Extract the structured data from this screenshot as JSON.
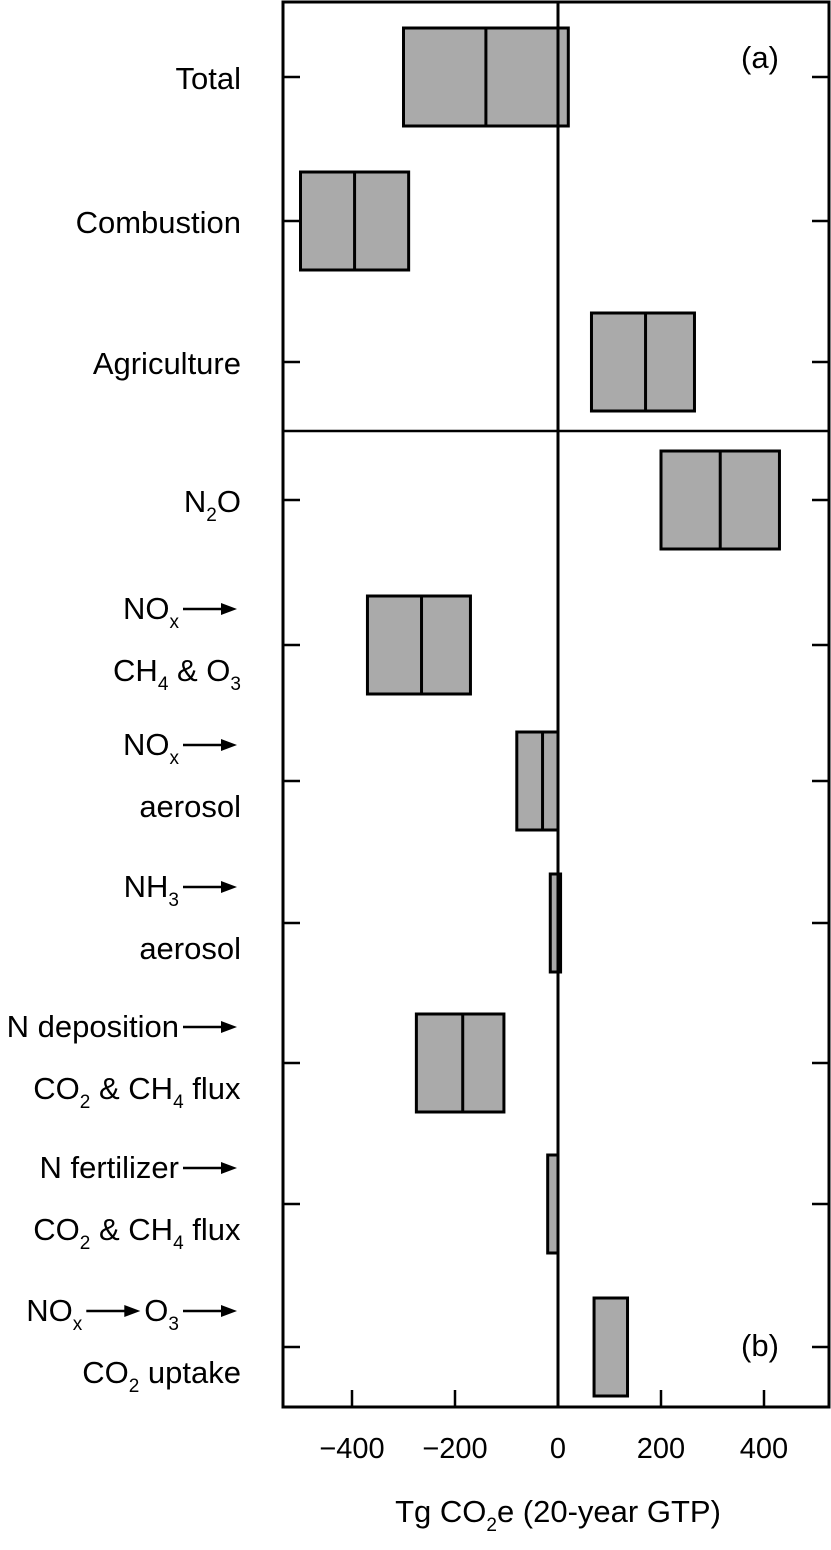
{
  "chart_data": {
    "type": "bar",
    "orientation": "horizontal",
    "bar_style": "range-with-center-line",
    "xlabel": {
      "parts": [
        {
          "t": "Tg CO"
        },
        {
          "t": "2",
          "sub": true
        },
        {
          "t": "e (20-year GTP)"
        }
      ]
    },
    "xlim": [
      -540,
      540
    ],
    "xticks": [
      -400,
      -200,
      0,
      200,
      400
    ],
    "xtick_labels": [
      "−400",
      "−200",
      "0",
      "200",
      "400"
    ],
    "grid": false,
    "panel_labels": [
      "(a)",
      "(b)"
    ],
    "bar_color": "#aaaaaa",
    "categories": [
      {
        "panel": "a",
        "lines": [
          [
            {
              "t": "Total"
            }
          ]
        ],
        "low": -300,
        "mid": -140,
        "high": 20
      },
      {
        "panel": "a",
        "lines": [
          [
            {
              "t": "Combustion"
            }
          ]
        ],
        "low": -500,
        "mid": -395,
        "high": -290
      },
      {
        "panel": "a",
        "lines": [
          [
            {
              "t": "Agriculture"
            }
          ]
        ],
        "low": 65,
        "mid": 170,
        "high": 265
      },
      {
        "panel": "b",
        "lines": [
          [
            {
              "t": "N"
            },
            {
              "t": "2",
              "sub": true
            },
            {
              "t": "O"
            }
          ]
        ],
        "low": 200,
        "mid": 315,
        "high": 430
      },
      {
        "panel": "b",
        "lines": [
          [
            {
              "t": "NO"
            },
            {
              "t": "x",
              "sub": true
            },
            {
              "arrow": true
            }
          ],
          [
            {
              "t": "CH"
            },
            {
              "t": "4",
              "sub": true
            },
            {
              "t": " & O"
            },
            {
              "t": "3",
              "sub": true
            }
          ]
        ],
        "low": -370,
        "mid": -265,
        "high": -170
      },
      {
        "panel": "b",
        "lines": [
          [
            {
              "t": "NO"
            },
            {
              "t": "x",
              "sub": true
            },
            {
              "arrow": true
            }
          ],
          [
            {
              "t": "aerosol"
            }
          ]
        ],
        "low": -80,
        "mid": -30,
        "high": 0
      },
      {
        "panel": "b",
        "lines": [
          [
            {
              "t": "NH"
            },
            {
              "t": "3",
              "sub": true
            },
            {
              "arrow": true
            }
          ],
          [
            {
              "t": "aerosol"
            }
          ]
        ],
        "low": -15,
        "mid": null,
        "high": 5
      },
      {
        "panel": "b",
        "lines": [
          [
            {
              "t": "N deposition"
            },
            {
              "arrow": true
            }
          ],
          [
            {
              "t": "CO"
            },
            {
              "t": "2",
              "sub": true
            },
            {
              "t": " & CH"
            },
            {
              "t": "4",
              "sub": true
            },
            {
              "t": " flux"
            }
          ]
        ],
        "low": -275,
        "mid": -185,
        "high": -105
      },
      {
        "panel": "b",
        "lines": [
          [
            {
              "t": "N fertilizer"
            },
            {
              "arrow": true
            }
          ],
          [
            {
              "t": "CO"
            },
            {
              "t": "2",
              "sub": true
            },
            {
              "t": " & CH"
            },
            {
              "t": "4",
              "sub": true
            },
            {
              "t": " flux"
            }
          ]
        ],
        "low": -20,
        "mid": null,
        "high": 0
      },
      {
        "panel": "b",
        "lines": [
          [
            {
              "t": "NO"
            },
            {
              "t": "x",
              "sub": true
            },
            {
              "arrow": true
            },
            {
              "t": "O"
            },
            {
              "t": "3",
              "sub": true
            },
            {
              "arrow": true
            }
          ],
          [
            {
              "t": "CO"
            },
            {
              "t": "2",
              "sub": true
            },
            {
              "t": " uptake"
            }
          ]
        ],
        "low": 70,
        "mid": null,
        "high": 135
      }
    ]
  }
}
